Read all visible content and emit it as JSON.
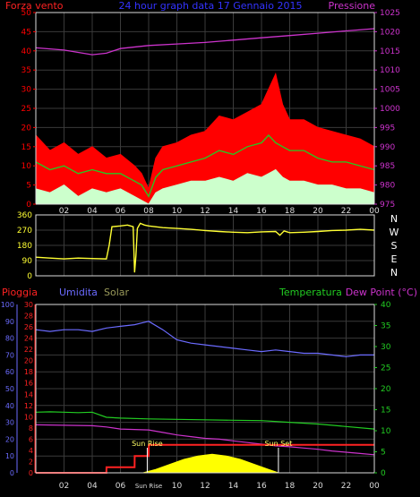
{
  "colors": {
    "background": "#000000",
    "frame": "#dcdcdc",
    "grid": "#3a3a3a",
    "wind_gust": "#ff0000",
    "wind_avg": "#22cc22",
    "wind_min": "#ccffcc",
    "pressure": "#cc33cc",
    "direction": "#ffff33",
    "rain": "#ff2222",
    "humidity": "#6b6bff",
    "solar": "#ffff00",
    "temperature": "#22cc22",
    "dew_point": "#cc33cc"
  },
  "chart_data": [
    {
      "type": "line",
      "panel": "wind",
      "title": "24 hour graph data 17 Gennaio 2015",
      "left_label": "Forza vento",
      "right_label": "Pressione",
      "x_ticks": [
        "02",
        "04",
        "06",
        "08",
        "10",
        "12",
        "14",
        "16",
        "18",
        "20",
        "22",
        "00"
      ],
      "x_range_hours": [
        0,
        24
      ],
      "ylim_left": [
        0,
        50
      ],
      "y_ticks_left": [
        "0",
        "5",
        "10",
        "15",
        "20",
        "25",
        "30",
        "35",
        "40",
        "45",
        "50"
      ],
      "ylim_right": [
        975,
        1025
      ],
      "y_ticks_right": [
        "975",
        "980",
        "985",
        "990",
        "995",
        "1000",
        "1005",
        "1010",
        "1015",
        "1020",
        "1025"
      ],
      "grid": true,
      "series": [
        {
          "key": "gust",
          "color_key": "wind_gust",
          "style": "filled-area",
          "x": [
            0,
            1,
            2,
            3,
            4,
            5,
            6,
            7,
            7.5,
            8,
            8.5,
            9,
            10,
            11,
            12,
            13,
            14,
            15,
            16,
            16.5,
            17,
            17.5,
            18,
            19,
            20,
            21,
            22,
            23,
            24
          ],
          "values": [
            18,
            14,
            16,
            13,
            15,
            12,
            13,
            10,
            8,
            4,
            12,
            15,
            16,
            18,
            19,
            23,
            22,
            24,
            26,
            30,
            34,
            26,
            22,
            22,
            20,
            19,
            18,
            17,
            15
          ]
        },
        {
          "key": "average",
          "color_key": "wind_avg",
          "style": "line",
          "x": [
            0,
            1,
            2,
            3,
            4,
            5,
            6,
            7,
            7.5,
            8,
            8.5,
            9,
            10,
            11,
            12,
            13,
            14,
            15,
            16,
            16.5,
            17,
            17.5,
            18,
            19,
            20,
            21,
            22,
            23,
            24
          ],
          "values": [
            11,
            9,
            10,
            8,
            9,
            8,
            8,
            6,
            5,
            2,
            7,
            9,
            10,
            11,
            12,
            14,
            13,
            15,
            16,
            18,
            16,
            15,
            14,
            14,
            12,
            11,
            11,
            10,
            9
          ]
        },
        {
          "key": "minimum",
          "color_key": "wind_min",
          "style": "filled-area",
          "x": [
            0,
            1,
            2,
            3,
            4,
            5,
            6,
            7,
            7.5,
            8,
            8.5,
            9,
            10,
            11,
            12,
            13,
            14,
            15,
            16,
            16.5,
            17,
            17.5,
            18,
            19,
            20,
            21,
            22,
            23,
            24
          ],
          "values": [
            4,
            3,
            5,
            2,
            4,
            3,
            4,
            2,
            1,
            0,
            3,
            4,
            5,
            6,
            6,
            7,
            6,
            8,
            7,
            8,
            9,
            7,
            6,
            6,
            5,
            5,
            4,
            4,
            3
          ]
        },
        {
          "key": "pressure",
          "axis": "right",
          "color_key": "pressure",
          "style": "line",
          "x": [
            0,
            2,
            4,
            5,
            6,
            8,
            10,
            12,
            14,
            16,
            18,
            20,
            22,
            24
          ],
          "values": [
            1015.8,
            1015.2,
            1014.0,
            1014.4,
            1015.6,
            1016.4,
            1016.8,
            1017.2,
            1017.8,
            1018.4,
            1019.0,
            1019.6,
            1020.2,
            1020.8
          ]
        }
      ]
    },
    {
      "type": "line",
      "panel": "direction",
      "x_range_hours": [
        0,
        24
      ],
      "ylim": [
        0,
        360
      ],
      "y_ticks": [
        "0",
        "90",
        "180",
        "270",
        "360"
      ],
      "compass_labels": [
        "N",
        "W",
        "S",
        "E",
        "N"
      ],
      "grid": true,
      "series": [
        {
          "key": "direction",
          "color_key": "direction",
          "x": [
            0,
            1,
            2,
            3,
            4,
            5,
            5.2,
            5.4,
            6,
            6.5,
            6.9,
            7.0,
            7.1,
            7.2,
            7.4,
            7.7,
            8,
            9,
            10,
            11,
            12,
            13,
            14,
            15,
            16,
            17,
            17.3,
            17.6,
            18,
            19,
            20,
            21,
            22,
            23,
            24
          ],
          "values": [
            110,
            105,
            100,
            105,
            102,
            100,
            180,
            290,
            295,
            300,
            290,
            20,
            120,
            280,
            310,
            300,
            295,
            285,
            280,
            275,
            268,
            262,
            258,
            255,
            260,
            262,
            240,
            265,
            255,
            258,
            262,
            268,
            270,
            275,
            270
          ]
        }
      ]
    },
    {
      "type": "line",
      "panel": "weather",
      "labels": {
        "rain": "Pioggia",
        "humidity": "Umidita",
        "solar": "Solar",
        "temperature": "Temperatura",
        "dew_point": "Dew Point (°C)"
      },
      "x_ticks": [
        "02",
        "04",
        "06",
        "Sun Rise",
        "10",
        "12",
        "14",
        "16",
        "18",
        "20",
        "22",
        "00"
      ],
      "x_range_hours": [
        0,
        24
      ],
      "ylim_humidity": [
        0,
        100
      ],
      "y_ticks_humidity": [
        "0",
        "10",
        "20",
        "30",
        "40",
        "50",
        "60",
        "70",
        "80",
        "90",
        "100"
      ],
      "ylim_rain": [
        0,
        30
      ],
      "y_ticks_rain": [
        "0",
        "2",
        "4",
        "6",
        "8",
        "10",
        "12",
        "14",
        "16",
        "18",
        "20",
        "22",
        "24",
        "26",
        "28",
        "30"
      ],
      "ylim_temperature": [
        0,
        40
      ],
      "y_ticks_temperature": [
        "0",
        "5",
        "10",
        "15",
        "20",
        "25",
        "30",
        "35",
        "40"
      ],
      "annotations": [
        {
          "text": "Sun Rise",
          "hour": 7.9
        },
        {
          "text": "Sun Set",
          "hour": 17.2
        }
      ],
      "grid": true,
      "series": [
        {
          "key": "humidity",
          "axis": "humidity",
          "color_key": "humidity",
          "x": [
            0,
            1,
            2,
            3,
            4,
            5,
            6,
            7,
            7.5,
            8,
            9,
            10,
            11,
            12,
            13,
            14,
            15,
            16,
            17,
            18,
            19,
            20,
            21,
            22,
            23,
            24
          ],
          "values": [
            85,
            84,
            85,
            85,
            84,
            86,
            87,
            88,
            89,
            90,
            85,
            79,
            77,
            76,
            75,
            74,
            73,
            72,
            73,
            72,
            71,
            71,
            70,
            69,
            70,
            70
          ]
        },
        {
          "key": "temperature",
          "axis": "temperature",
          "color_key": "temperature",
          "x": [
            0,
            1,
            2,
            3,
            4,
            5,
            6,
            8,
            10,
            12,
            14,
            16,
            18,
            20,
            22,
            24
          ],
          "values": [
            14.4,
            14.5,
            14.4,
            14.3,
            14.4,
            13.2,
            13.0,
            12.8,
            12.7,
            12.6,
            12.5,
            12.4,
            12.0,
            11.6,
            11.0,
            10.4
          ]
        },
        {
          "key": "dew_point",
          "axis": "temperature",
          "color_key": "dew_point",
          "x": [
            0,
            2,
            4,
            5,
            6,
            8,
            9,
            10,
            11,
            12,
            13,
            14,
            15,
            16,
            17,
            18,
            19,
            20,
            21,
            22,
            23,
            24
          ],
          "values": [
            11.4,
            11.3,
            11.2,
            10.9,
            10.4,
            10.2,
            9.6,
            9.0,
            8.6,
            8.2,
            8.0,
            7.6,
            7.2,
            6.8,
            6.4,
            6.2,
            5.9,
            5.6,
            5.2,
            4.9,
            4.6,
            4.3
          ]
        },
        {
          "key": "rain",
          "axis": "rain",
          "color_key": "rain",
          "style": "step",
          "x": [
            0,
            5,
            5.01,
            7,
            7.01,
            8,
            8.01,
            24
          ],
          "values": [
            0,
            0,
            1,
            1,
            3,
            3,
            5,
            5
          ]
        },
        {
          "key": "solar",
          "axis": "humidity",
          "color_key": "solar",
          "style": "filled-area",
          "x": [
            7.6,
            8.5,
            9.5,
            10.5,
            11.5,
            12.5,
            13.5,
            14.5,
            15.5,
            16.5,
            17.2
          ],
          "values": [
            0,
            2,
            5,
            8,
            10,
            11,
            10,
            8,
            5,
            2,
            0
          ]
        }
      ]
    }
  ]
}
